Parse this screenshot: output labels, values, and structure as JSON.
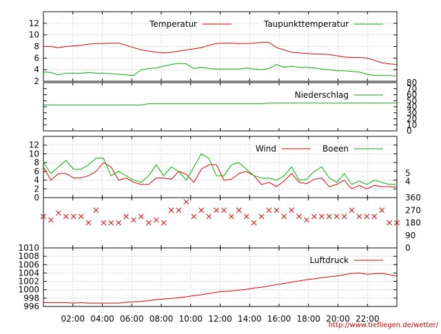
{
  "credit": "http://www.tiefliegen.de/wetter/",
  "x_ticks": [
    "02:00",
    "04:00",
    "06:00",
    "08:00",
    "10:00",
    "12:00",
    "14:00",
    "16:00",
    "18:00",
    "20:00",
    "22:00"
  ],
  "colors": {
    "red": "#dd0000",
    "green": "#00b000",
    "grid": "#999999",
    "axis": "#000000"
  },
  "chart_data": [
    {
      "type": "line",
      "name": "temperature",
      "ylim": [
        2,
        14
      ],
      "yticks": [
        2,
        4,
        6,
        8,
        10,
        12
      ],
      "grid": true,
      "legend": "top-right",
      "x": [
        0,
        1,
        2,
        3,
        4,
        5,
        6,
        7,
        8,
        9,
        10,
        11,
        12,
        13,
        14,
        15,
        16,
        17,
        18,
        19,
        20,
        21,
        22,
        23,
        24,
        25,
        26,
        27,
        28,
        29,
        30,
        31,
        32,
        33,
        34,
        35,
        36,
        37,
        38,
        39,
        40,
        41,
        42,
        43,
        44,
        45,
        46,
        47
      ],
      "series": [
        {
          "name": "Temperatur",
          "color": "red",
          "values": [
            8.0,
            8.0,
            7.8,
            8.0,
            8.1,
            8.2,
            8.4,
            8.5,
            8.5,
            8.6,
            8.6,
            8.2,
            7.8,
            7.4,
            7.2,
            7.0,
            6.9,
            7.0,
            7.2,
            7.4,
            7.6,
            7.8,
            8.2,
            8.5,
            8.6,
            8.6,
            8.5,
            8.5,
            8.6,
            8.7,
            8.7,
            7.8,
            7.4,
            7.0,
            6.9,
            6.8,
            6.7,
            6.7,
            6.6,
            6.4,
            6.2,
            6.1,
            6.1,
            6.0,
            5.6,
            5.2,
            5.0,
            4.9
          ]
        },
        {
          "name": "Taupunkttemperatur",
          "color": "green",
          "values": [
            3.6,
            3.5,
            3.1,
            3.4,
            3.4,
            3.4,
            3.5,
            3.4,
            3.4,
            3.3,
            3.2,
            3.1,
            3.0,
            4.0,
            4.2,
            4.3,
            4.6,
            4.9,
            5.1,
            5.0,
            4.2,
            4.4,
            4.2,
            4.1,
            4.1,
            4.1,
            4.1,
            4.3,
            4.1,
            4.0,
            4.2,
            4.9,
            4.4,
            4.6,
            4.4,
            4.4,
            4.3,
            4.1,
            4.0,
            3.8,
            3.8,
            3.7,
            3.6,
            3.2,
            3.0,
            3.0,
            3.0,
            2.9
          ]
        }
      ]
    },
    {
      "type": "line",
      "name": "precipitation",
      "ylim": [
        0,
        80
      ],
      "yticks": [
        0,
        10,
        20,
        30,
        40,
        50,
        60,
        70,
        80
      ],
      "legend": "top-right",
      "x": [
        0,
        1,
        2,
        3,
        4,
        5,
        6,
        7,
        8,
        9,
        10,
        11,
        12,
        13,
        14,
        15,
        16,
        17,
        18,
        19,
        20,
        21,
        22,
        23,
        24,
        25,
        26,
        27,
        28,
        29,
        30,
        31,
        32,
        33,
        34,
        35,
        36,
        37,
        38,
        39,
        40,
        41,
        42,
        43,
        44,
        45,
        46,
        47
      ],
      "series": [
        {
          "name": "Niederschlag",
          "color": "green",
          "values": [
            43,
            43,
            43,
            43,
            43,
            43,
            43,
            43,
            43,
            43,
            43,
            43,
            43,
            43,
            45,
            45,
            45,
            45,
            45,
            45,
            45,
            45,
            45,
            45,
            45,
            45,
            45,
            45,
            45,
            45,
            46,
            46,
            46,
            46,
            46,
            46,
            46,
            46,
            46,
            46,
            46,
            46,
            46,
            46,
            46,
            46,
            46,
            46
          ]
        }
      ]
    },
    {
      "type": "line",
      "name": "wind",
      "ylim": [
        0,
        14
      ],
      "yticks": [
        0,
        2,
        4,
        6,
        8,
        10,
        12
      ],
      "yticks_right": [
        "4",
        "5"
      ],
      "grid": true,
      "legend": "top-right",
      "x": [
        0,
        1,
        2,
        3,
        4,
        5,
        6,
        7,
        8,
        9,
        10,
        11,
        12,
        13,
        14,
        15,
        16,
        17,
        18,
        19,
        20,
        21,
        22,
        23,
        24,
        25,
        26,
        27,
        28,
        29,
        30,
        31,
        32,
        33,
        34,
        35,
        36,
        37,
        38,
        39,
        40,
        41,
        42,
        43,
        44,
        45,
        46,
        47
      ],
      "series": [
        {
          "name": "Wind",
          "color": "red",
          "values": [
            7,
            4,
            5.5,
            5.5,
            4.5,
            4.5,
            5,
            6,
            8,
            7,
            4,
            4.5,
            3.5,
            3,
            3,
            4.5,
            4.5,
            4.2,
            6,
            5.3,
            3.5,
            6.5,
            7.5,
            7.5,
            4,
            4.2,
            5.5,
            6,
            5,
            3,
            3.5,
            2.5,
            3.8,
            5.5,
            3.5,
            3.2,
            4.2,
            4.5,
            2.5,
            3,
            4,
            2,
            2.8,
            2,
            2.8,
            2.5,
            2.5,
            2.4
          ]
        },
        {
          "name": "Boeen",
          "color": "green",
          "values": [
            8,
            5.5,
            7,
            8.5,
            6.5,
            6.5,
            7.5,
            9,
            9,
            5,
            6,
            5,
            4,
            3.5,
            5,
            7.5,
            5,
            7,
            6,
            4,
            7,
            10,
            9,
            5,
            5,
            7.5,
            8,
            6.5,
            5,
            4.5,
            4.5,
            4,
            5,
            7,
            4,
            4.2,
            6,
            7,
            4.5,
            3.5,
            5.5,
            3,
            3.8,
            3,
            4,
            3.5,
            3,
            3
          ]
        }
      ]
    },
    {
      "type": "scatter",
      "name": "wind-direction",
      "ylim": [
        0,
        360
      ],
      "yticks_right": [
        "0",
        "90",
        "180",
        "270",
        "360"
      ],
      "marker": "x",
      "x": [
        0,
        1,
        2,
        3,
        4,
        5,
        6,
        7,
        8,
        9,
        10,
        11,
        12,
        13,
        14,
        15,
        16,
        17,
        18,
        19,
        20,
        21,
        22,
        23,
        24,
        25,
        26,
        27,
        28,
        29,
        30,
        31,
        32,
        33,
        34,
        35,
        36,
        37,
        38,
        39,
        40,
        41,
        42,
        43,
        44,
        45,
        46,
        47
      ],
      "series": [
        {
          "name": "",
          "color": "red",
          "values": [
            225,
            200,
            250,
            225,
            225,
            225,
            180,
            270,
            180,
            180,
            180,
            225,
            200,
            225,
            180,
            200,
            180,
            270,
            270,
            330,
            225,
            270,
            225,
            270,
            270,
            225,
            270,
            225,
            180,
            225,
            270,
            270,
            225,
            270,
            225,
            200,
            225,
            225,
            225,
            225,
            225,
            270,
            225,
            225,
            225,
            270,
            180,
            180
          ]
        }
      ]
    },
    {
      "type": "line",
      "name": "pressure",
      "ylim": [
        996,
        1010
      ],
      "yticks": [
        996,
        998,
        1000,
        1002,
        1004,
        1006,
        1008,
        1010
      ],
      "grid": true,
      "legend": "top-right",
      "x": [
        0,
        1,
        2,
        3,
        4,
        5,
        6,
        7,
        8,
        9,
        10,
        11,
        12,
        13,
        14,
        15,
        16,
        17,
        18,
        19,
        20,
        21,
        22,
        23,
        24,
        25,
        26,
        27,
        28,
        29,
        30,
        31,
        32,
        33,
        34,
        35,
        36,
        37,
        38,
        39,
        40,
        41,
        42,
        43,
        44,
        45,
        46,
        47
      ],
      "series": [
        {
          "name": "Luftdruck",
          "color": "red",
          "values": [
            996.9,
            996.9,
            996.9,
            996.9,
            996.8,
            996.9,
            996.8,
            996.8,
            996.8,
            996.8,
            996.8,
            997.0,
            997.1,
            997.2,
            997.4,
            997.6,
            997.8,
            997.9,
            998.1,
            998.3,
            998.6,
            998.8,
            999.1,
            999.4,
            999.6,
            999.7,
            999.9,
            1000.1,
            1000.4,
            1000.6,
            1000.9,
            1001.2,
            1001.5,
            1001.8,
            1002.1,
            1002.4,
            1002.6,
            1002.9,
            1003.1,
            1003.3,
            1003.6,
            1003.9,
            1004.0,
            1003.7,
            1003.8,
            1003.9,
            1003.6,
            1003.3
          ]
        }
      ]
    }
  ]
}
